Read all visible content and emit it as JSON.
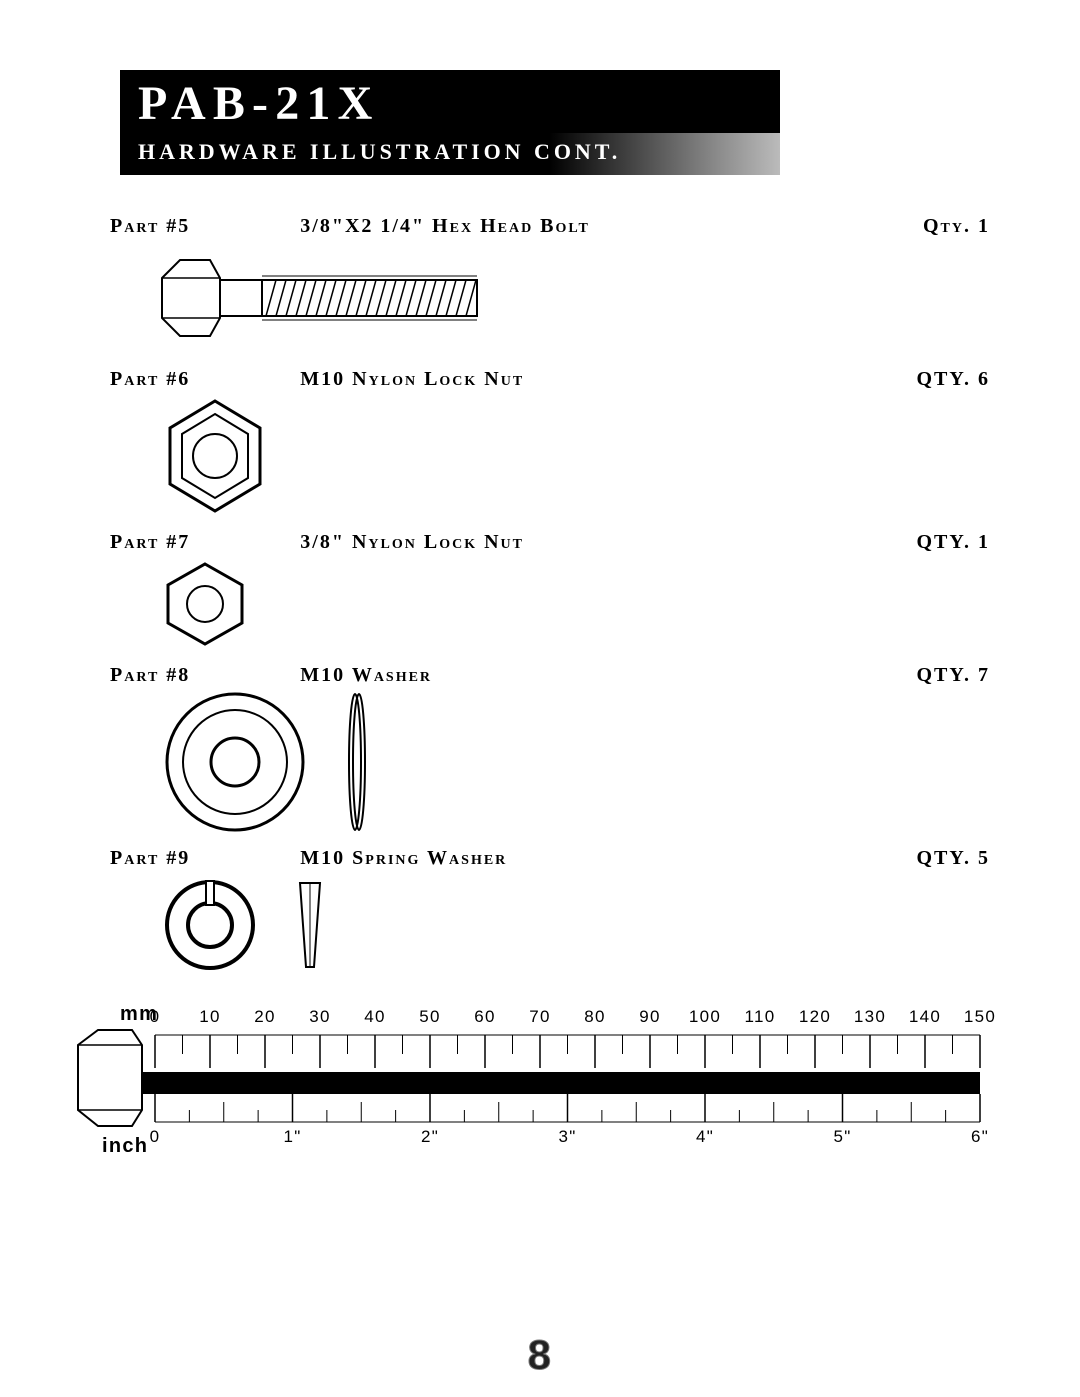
{
  "header": {
    "model": "PAB-21X",
    "subtitle": "HARDWARE ILLUSTRATION CONT."
  },
  "parts": [
    {
      "num": "Part #5",
      "desc": "3/8\"X2 1/4\" Hex Head Bolt",
      "qty": "Qty. 1",
      "icon": "hexbolt",
      "h": 120
    },
    {
      "num": "Part #6",
      "desc": "M10 Nylon Lock Nut",
      "qty": "QTY. 6",
      "icon": "locknut-big",
      "h": 130
    },
    {
      "num": "Part #7",
      "desc": "3/8\" Nylon Lock Nut",
      "qty": "QTY. 1",
      "icon": "locknut-small",
      "h": 110
    },
    {
      "num": "Part #8",
      "desc": "M10 Washer",
      "qty": "QTY. 7",
      "icon": "washer",
      "h": 160
    },
    {
      "num": "Part #9",
      "desc": "M10 Spring Washer",
      "qty": "QTY. 5",
      "icon": "springwasher",
      "h": 120
    }
  ],
  "ruler": {
    "mm_label": "mm",
    "inch_label": "inch",
    "mm_ticks": [
      0,
      10,
      20,
      30,
      40,
      50,
      60,
      70,
      80,
      90,
      100,
      110,
      120,
      130,
      140,
      150
    ],
    "inch_ticks": [
      "0",
      "1\"",
      "2\"",
      "3\"",
      "4\"",
      "5\"",
      "6\""
    ],
    "mm_minor_per_major": 10,
    "band_color": "#000000",
    "tick_color": "#000000",
    "text_color": "#000000",
    "ruler_bg": "#ffffff"
  },
  "page_number": "8",
  "colors": {
    "black": "#000000",
    "white": "#ffffff"
  }
}
